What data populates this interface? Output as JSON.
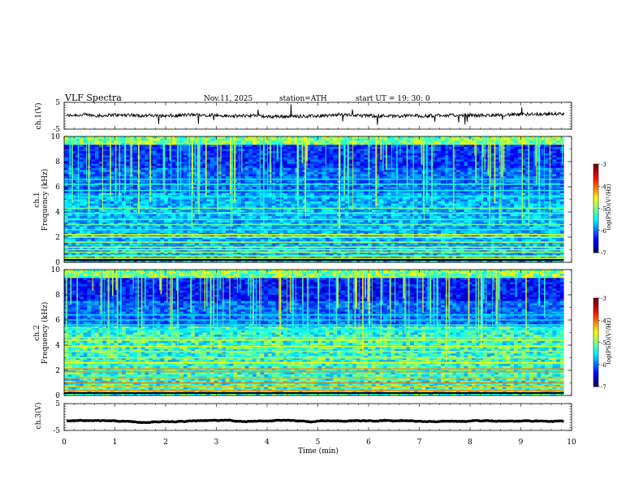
{
  "header": {
    "title": "VLF  Spectra",
    "date": "Nov.11, 2025",
    "station": "station=ATH",
    "start": "start  UT  =     19: 30: 0"
  },
  "colors": {
    "background": "#ffffff",
    "axis": "#000000",
    "waveform": "#000000"
  },
  "chart_data": [
    {
      "type": "line",
      "name": "ch1-waveform",
      "ylabel": "ch.1(V)",
      "ylim": [
        -5,
        5
      ],
      "yticks": [
        "5",
        "-5"
      ],
      "xlim": [
        0,
        10
      ],
      "description_values": {
        "baseline": 0,
        "noise_amplitude": 1.2
      }
    },
    {
      "type": "heatmap",
      "name": "ch1-spectrogram",
      "ylabel_line1": "ch.1",
      "ylabel_line2": "Frequency  (kHz)",
      "ylim": [
        0,
        10
      ],
      "yticks": [
        "0",
        "2",
        "4",
        "6",
        "8",
        "10"
      ],
      "xlim": [
        0,
        9.85
      ],
      "colorbar": {
        "label": "log(PSD)(V²/Hz)",
        "range": [
          -7,
          -3
        ],
        "ticks": [
          "-3",
          "-4",
          "-5",
          "-6",
          "-7"
        ]
      },
      "bands_khz": [
        0.3,
        0.5,
        0.8,
        1.0,
        1.2,
        1.6,
        2.0,
        2.2,
        2.6,
        3.0,
        3.4,
        3.9,
        4.3,
        5.2,
        5.7,
        6.2,
        6.6
      ]
    },
    {
      "type": "heatmap",
      "name": "ch2-spectrogram",
      "ylabel_line1": "ch.2",
      "ylabel_line2": "Frequency  (kHz)",
      "ylim": [
        0,
        10
      ],
      "yticks": [
        "0",
        "2",
        "4",
        "6",
        "8",
        "10"
      ],
      "xlim": [
        0,
        9.85
      ],
      "colorbar": {
        "label": "log(PSD)(V²/Hz)",
        "range": [
          -7,
          -3
        ],
        "ticks": [
          "-3",
          "-4",
          "-5",
          "-6",
          "-7"
        ]
      },
      "bands_khz": [
        0.4,
        0.7,
        1.0,
        1.4,
        1.9,
        2.1,
        2.6,
        3.0,
        3.5,
        3.9,
        4.4,
        4.6,
        5.2,
        5.6,
        6.0,
        6.4
      ]
    },
    {
      "type": "line",
      "name": "ch3-waveform",
      "ylabel": "ch.3(V)",
      "ylim": [
        -5,
        5
      ],
      "yticks": [
        "5",
        "-5"
      ],
      "xlim": [
        0,
        10
      ],
      "description_values": {
        "baseline": -1.5,
        "noise_amplitude": 0.1
      }
    }
  ],
  "xaxis": {
    "label": "Time  (min)",
    "range": [
      0,
      10
    ],
    "ticks": [
      "0",
      "1",
      "2",
      "3",
      "4",
      "5",
      "6",
      "7",
      "8",
      "9",
      "10"
    ]
  }
}
